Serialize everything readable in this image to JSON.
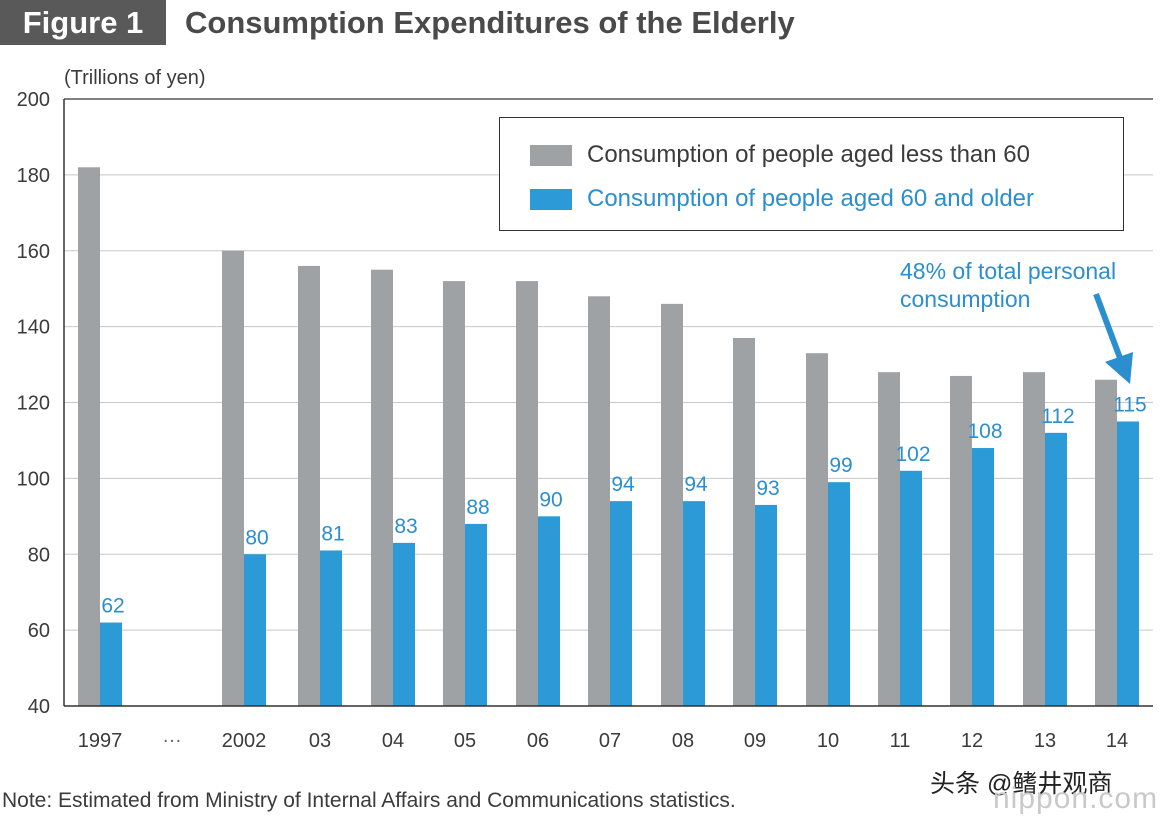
{
  "header": {
    "figure_label": "Figure 1",
    "title": "Consumption Expenditures of the Elderly"
  },
  "note": "Note: Estimated from Ministry of Internal Affairs and Communications statistics.",
  "watermark": {
    "line1": "头条 @鳍井观商",
    "line2": "nippon.com"
  },
  "colors": {
    "under60": "#9ea2a5",
    "over60": "#2b9ad6",
    "axis": "#333333",
    "grid": "#c8c8c8",
    "label_blue": "#2b8fcf"
  },
  "chart_data": {
    "type": "bar",
    "title": "Consumption Expenditures of the Elderly",
    "ylabel": "(Trillions of yen)",
    "xlabel": "",
    "ylim": [
      40,
      200
    ],
    "yticks": [
      40,
      60,
      80,
      100,
      120,
      140,
      160,
      180,
      200
    ],
    "grid": true,
    "legend_position": "top-right",
    "categories": [
      "1997",
      "2002",
      "03",
      "04",
      "05",
      "06",
      "07",
      "08",
      "09",
      "10",
      "11",
      "12",
      "13",
      "14"
    ],
    "gap_label": "…",
    "series": [
      {
        "name": "Consumption of people aged less than 60",
        "color": "#9ea2a5",
        "values": [
          182,
          160,
          156,
          155,
          152,
          152,
          148,
          146,
          137,
          133,
          128,
          127,
          128,
          126
        ]
      },
      {
        "name": "Consumption of people aged 60 and older",
        "color": "#2b9ad6",
        "values": [
          62,
          80,
          81,
          83,
          88,
          90,
          94,
          94,
          93,
          99,
          102,
          108,
          112,
          115
        ],
        "data_labels": [
          "62",
          "80",
          "81",
          "83",
          "88",
          "90",
          "94",
          "94",
          "93",
          "99",
          "102",
          "108",
          "112",
          "115"
        ]
      }
    ],
    "annotation": {
      "line1": "48% of total personal",
      "line2": "consumption",
      "target_category": "14"
    }
  }
}
